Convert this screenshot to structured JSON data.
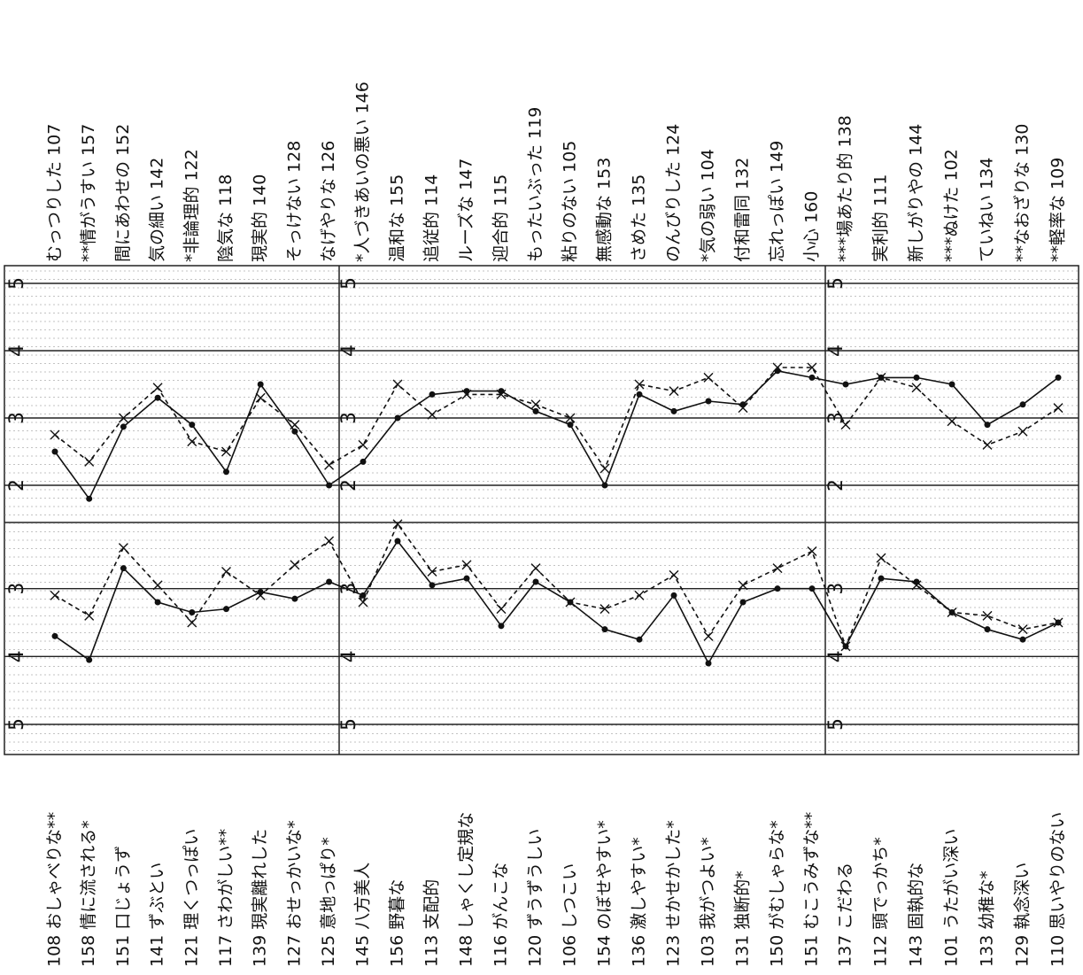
{
  "chart_data": [
    {
      "type": "line",
      "categories": [
        "むっつりした 107",
        "**情がうすい 157",
        "間にあわせの 152",
        "気の細い 142",
        "*非論理的 122",
        "陰気な 118",
        "現実的 140",
        "そっけない 128",
        "なげやりな 126",
        "*人づきあいの悪い 146",
        "温和な 155",
        "追従的 114",
        "ルーズな 147",
        "迎合的 115",
        "もったいぶった 119",
        "粘りのない 105",
        "無感動な 153",
        "さめた 135",
        "のんびりした 124",
        "*気の弱い 104",
        "付和雷同 132",
        "忘れっぽい 149",
        "小心 160",
        "***場あたり的 138",
        "実利的 111",
        "新しがりやの 144",
        "***ぬけた 102",
        "ていねい 134",
        "**なおざりな 130",
        "**軽率な 109"
      ],
      "ylim": [
        2,
        5
      ],
      "yticks": [
        2,
        3,
        4,
        5
      ],
      "grid": true,
      "series": [
        {
          "color": "#111111",
          "style": "solid",
          "values": [
            2.5,
            1.8,
            2.87,
            3.3,
            2.9,
            2.2,
            3.5,
            2.8,
            2.0,
            2.35,
            3.0,
            3.35,
            3.4,
            3.4,
            3.1,
            2.9,
            2.0,
            3.35,
            3.1,
            3.25,
            3.2,
            3.7,
            3.6,
            3.5,
            3.6,
            3.6,
            3.5,
            2.9,
            3.2,
            3.6
          ]
        },
        {
          "color": "#111111",
          "style": "dashed",
          "values": [
            2.75,
            2.35,
            3.0,
            3.45,
            2.65,
            2.5,
            3.3,
            2.9,
            2.3,
            2.6,
            3.5,
            3.05,
            3.35,
            3.35,
            3.2,
            3.0,
            2.25,
            3.5,
            3.4,
            3.6,
            3.15,
            3.75,
            3.75,
            2.9,
            3.6,
            3.45,
            2.95,
            2.6,
            2.8,
            3.15
          ]
        }
      ]
    },
    {
      "type": "line",
      "categories": [
        "108 おしゃべりな**",
        "158 情に流される*",
        "151 口じょうず",
        "141 ずぶとい",
        "121 理くつっぽい",
        "117 さわがしい**",
        "139 現実離れした",
        "127 おせっかいな*",
        "125 意地っぱり*",
        "145 八方美人",
        "156 野暮な",
        "113 支配的",
        "148 しゃくし定規な",
        "116 がんこな",
        "120 ずうずうしい",
        "106 しつこい",
        "154 のぼせやすい*",
        "136 激しやすい*",
        "123 せかせかした*",
        "103 我がつよい*",
        "131 独断的*",
        "150 がむしゃらな*",
        "151 むこうみずな**",
        "137 こだわる",
        "112 頭でっかち*",
        "143 固執的な",
        "101 うたがい深い",
        "133 幼稚な*",
        "129 執念深い",
        "110 思いやりのない"
      ],
      "ylim": [
        2,
        5
      ],
      "yticks": [
        3,
        4,
        5
      ],
      "grid": true,
      "series": [
        {
          "color": "#111111",
          "style": "solid",
          "values": [
            3.7,
            4.05,
            2.7,
            3.2,
            3.35,
            3.3,
            3.05,
            3.15,
            2.9,
            3.1,
            2.3,
            2.95,
            2.85,
            3.55,
            2.9,
            3.2,
            3.6,
            3.75,
            3.1,
            4.1,
            3.2,
            3.0,
            3.0,
            3.85,
            2.85,
            2.9,
            3.35,
            3.6,
            3.75,
            3.5
          ]
        },
        {
          "color": "#111111",
          "style": "dashed",
          "values": [
            3.1,
            3.4,
            2.4,
            2.95,
            3.5,
            2.75,
            3.1,
            2.65,
            2.3,
            3.2,
            2.05,
            2.75,
            2.65,
            3.3,
            2.7,
            3.2,
            3.3,
            3.1,
            2.8,
            3.7,
            2.95,
            2.7,
            2.45,
            3.85,
            2.55,
            2.95,
            3.35,
            3.4,
            3.6,
            3.5
          ]
        }
      ]
    }
  ]
}
